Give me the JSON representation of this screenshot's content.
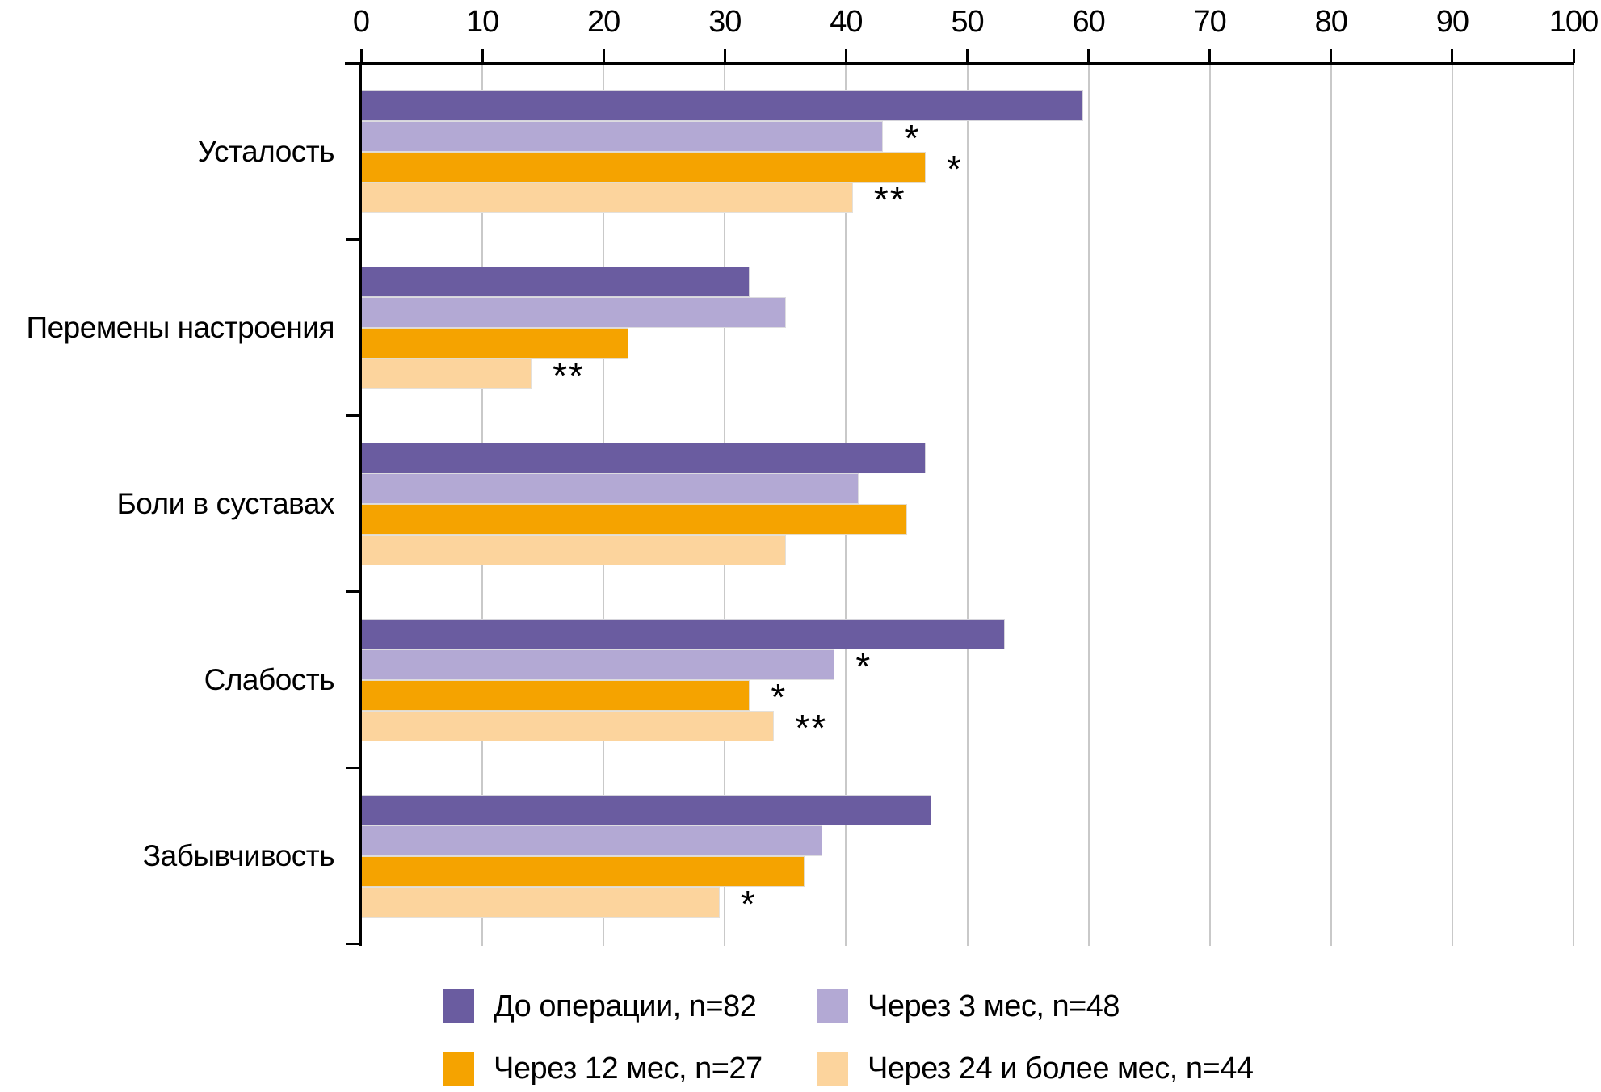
{
  "chart_data": {
    "type": "bar",
    "orientation": "horizontal-grouped",
    "title": "",
    "x_axis": {
      "position": "top",
      "min": 0,
      "max": 100,
      "tick_step": 10,
      "ticks": [
        0,
        10,
        20,
        30,
        40,
        50,
        60,
        70,
        80,
        90,
        100
      ]
    },
    "grid": true,
    "legend_position": "bottom",
    "categories": [
      "Усталость",
      "Перемены настроения",
      "Боли в суставах",
      "Слабость",
      "Забывчивость"
    ],
    "series": [
      {
        "name": "До операции, n=82",
        "color": "#6a5ca0",
        "values": [
          59.5,
          32,
          46.5,
          53,
          47
        ]
      },
      {
        "name": "Через 3 мес, n=48",
        "color": "#b3a9d4",
        "values": [
          43,
          35,
          41,
          39,
          38
        ]
      },
      {
        "name": "Через 12 мес, n=27",
        "color": "#f5a300",
        "values": [
          46.5,
          22,
          45,
          32,
          36.5
        ]
      },
      {
        "name": "Через 24 и более мес, n=44",
        "color": "#fcd49d",
        "values": [
          40.5,
          14,
          35,
          34,
          29.5
        ]
      }
    ],
    "annotations": [
      [
        "",
        "*",
        "*",
        "**"
      ],
      [
        "",
        "",
        "",
        "**"
      ],
      [
        "",
        "",
        "",
        ""
      ],
      [
        "",
        "*",
        "*",
        "**"
      ],
      [
        "",
        "",
        "",
        "*"
      ]
    ],
    "annotation_meaning": "significance markers shown after bars"
  },
  "colors": {
    "axis": "#000000",
    "gridline": "#c9c9c9",
    "background": "#ffffff",
    "text": "#000000"
  }
}
